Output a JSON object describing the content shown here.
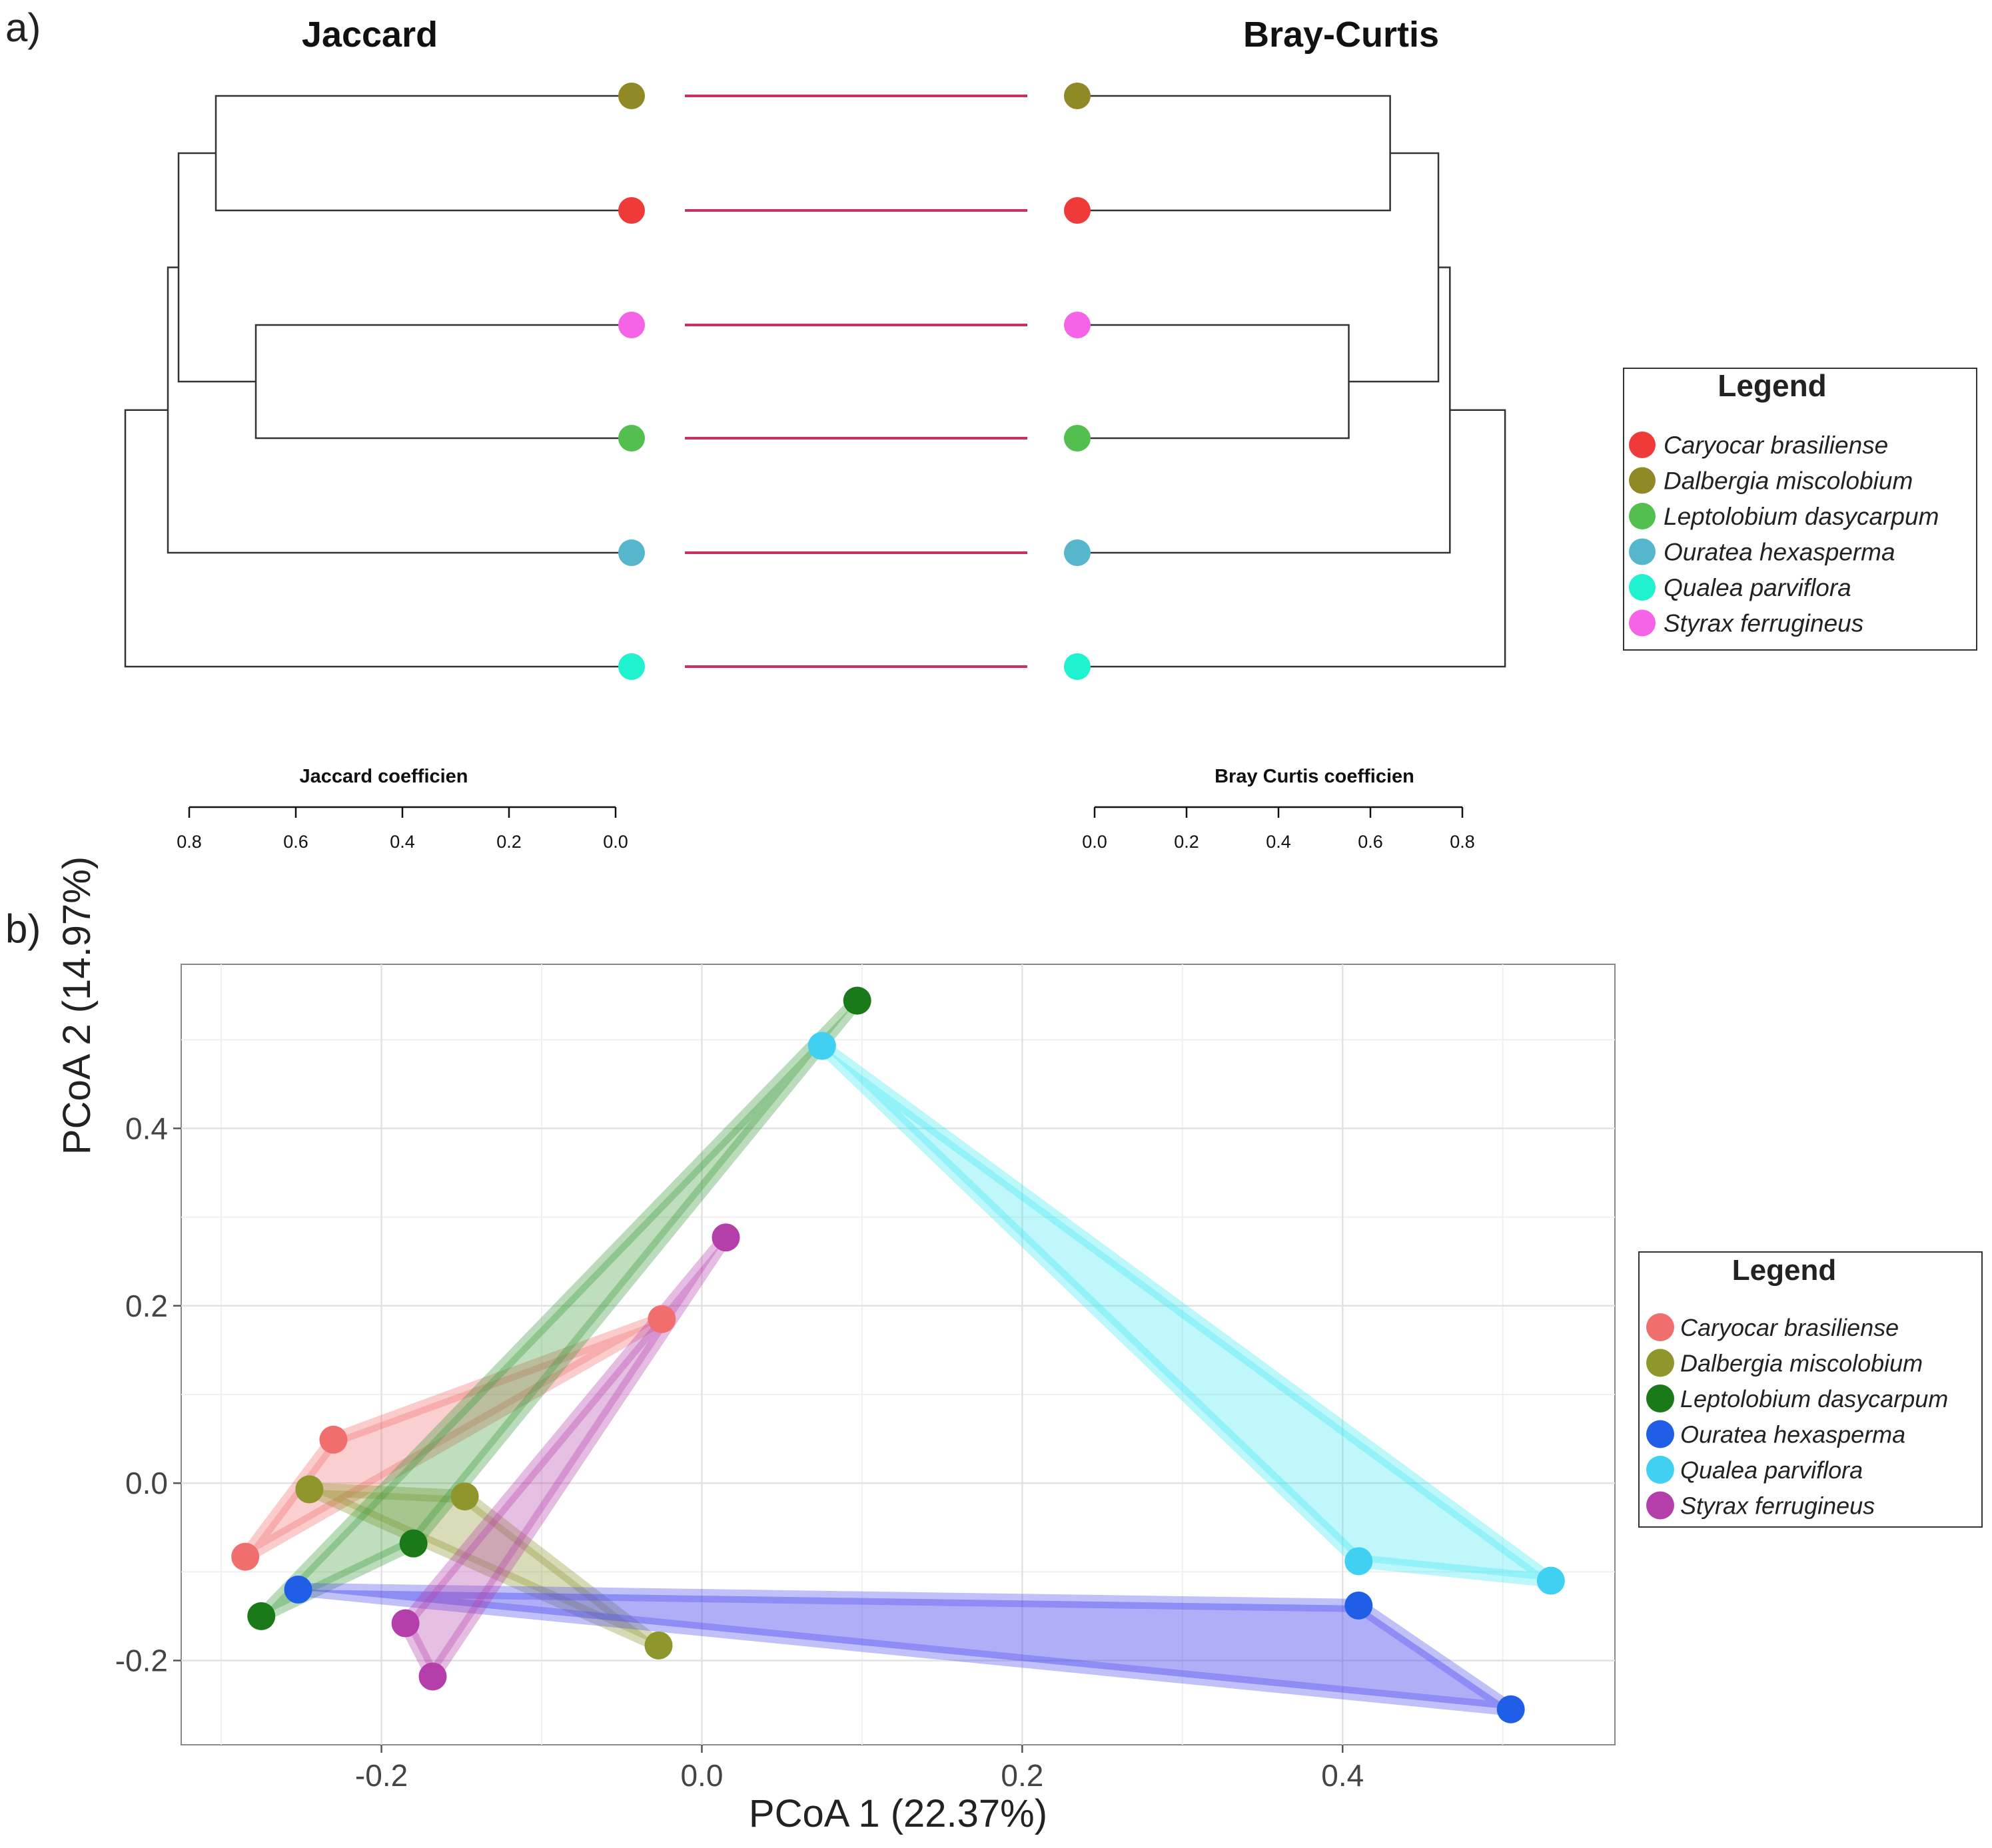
{
  "panel_labels": {
    "a": "a)",
    "b": "b)"
  },
  "species_colors_dendro": {
    "Caryocar brasiliense": "#f03a3a",
    "Dalbergia miscolobium": "#8f8a25",
    "Leptolobium dasycarpum": "#52bf4e",
    "Ouratea hexasperma": "#55b6cc",
    "Qualea parviflora": "#1ff2cf",
    "Styrax ferrugineus": "#f563e6"
  },
  "species_colors_pcoa": {
    "Caryocar brasiliense": "#f06e6e",
    "Dalbergia miscolobium": "#8f962b",
    "Leptolobium dasycarpum": "#1a7a1a",
    "Ouratea hexasperma": "#1f5fe8",
    "Qualea parviflora": "#3fd0f2",
    "Styrax ferrugineus": "#b43fab"
  },
  "chart_data": [
    {
      "type": "dendrogram",
      "panel": "a)",
      "title_left": "Jaccard",
      "title_right": "Bray-Curtis",
      "leaf_order": [
        "Dalbergia miscolobium",
        "Caryocar brasiliense",
        "Styrax ferrugineus",
        "Leptolobium dasycarpum",
        "Ouratea hexasperma",
        "Qualea parviflora"
      ],
      "connector_color": "#c8325f",
      "jaccard": {
        "axis_label": "Jaccard coefficien",
        "ticks": [
          0.8,
          0.6,
          0.4,
          0.2,
          0.0
        ],
        "tick_labels": [
          "0.8",
          "0.6",
          "0.4",
          "0.2",
          "0.0"
        ],
        "xlim": [
          0.0,
          0.8
        ],
        "merges": [
          {
            "members": [
              0,
              1
            ],
            "height": 0.75
          },
          {
            "members": [
              2,
              3
            ],
            "height": 0.675
          },
          {
            "members": [
              6,
              7
            ],
            "height": 0.82
          },
          {
            "members": [
              8,
              4
            ],
            "height": 0.84
          },
          {
            "members": [
              9,
              5
            ],
            "height": 0.92
          }
        ]
      },
      "bray_curtis": {
        "axis_label": "Bray Curtis coefficien",
        "ticks": [
          0.0,
          0.2,
          0.4,
          0.6,
          0.8
        ],
        "tick_labels": [
          "0.0",
          "0.2",
          "0.4",
          "0.6",
          "0.8"
        ],
        "xlim": [
          0.0,
          0.8
        ],
        "merges": [
          {
            "members": [
              0,
              1
            ],
            "height": 0.64
          },
          {
            "members": [
              2,
              3
            ],
            "height": 0.55
          },
          {
            "members": [
              6,
              7
            ],
            "height": 0.745
          },
          {
            "members": [
              8,
              4
            ],
            "height": 0.77
          },
          {
            "members": [
              9,
              5
            ],
            "height": 0.89
          }
        ]
      },
      "legend": {
        "title": "Legend",
        "entries": [
          "Caryocar brasiliense",
          "Dalbergia miscolobium",
          "Leptolobium dasycarpum",
          "Ouratea hexasperma",
          "Qualea parviflora",
          "Styrax ferrugineus"
        ]
      }
    },
    {
      "type": "scatter",
      "panel": "b)",
      "xlabel": "PCoA 1 (22.37%)",
      "ylabel": "PCoA 2 (14.97%)",
      "xlim": [
        -0.325,
        0.57
      ],
      "ylim": [
        -0.295,
        0.585
      ],
      "xticks": [
        -0.2,
        0.0,
        0.2,
        0.4
      ],
      "xtick_labels": [
        "-0.2",
        "0.0",
        "0.2",
        "0.4"
      ],
      "yticks": [
        -0.2,
        0.0,
        0.2,
        0.4
      ],
      "ytick_labels": [
        "-0.2",
        "0.0",
        "0.2",
        "0.4"
      ],
      "grid": true,
      "hull_opacity": 0.33,
      "series": [
        {
          "name": "Caryocar brasiliense",
          "points": [
            [
              -0.285,
              -0.083
            ],
            [
              -0.23,
              0.049
            ],
            [
              -0.025,
              0.185
            ]
          ]
        },
        {
          "name": "Dalbergia miscolobium",
          "points": [
            [
              -0.245,
              -0.007
            ],
            [
              -0.148,
              -0.015
            ],
            [
              -0.027,
              -0.183
            ]
          ]
        },
        {
          "name": "Leptolobium dasycarpum",
          "points": [
            [
              -0.275,
              -0.15
            ],
            [
              -0.18,
              -0.068
            ],
            [
              0.097,
              0.544
            ]
          ]
        },
        {
          "name": "Ouratea hexasperma",
          "points": [
            [
              -0.252,
              -0.12
            ],
            [
              0.41,
              -0.138
            ],
            [
              0.505,
              -0.255
            ]
          ]
        },
        {
          "name": "Qualea parviflora",
          "points": [
            [
              0.075,
              0.493
            ],
            [
              0.41,
              -0.088
            ],
            [
              0.53,
              -0.11
            ]
          ]
        },
        {
          "name": "Styrax ferrugineus",
          "points": [
            [
              -0.185,
              -0.158
            ],
            [
              -0.168,
              -0.218
            ],
            [
              0.015,
              0.277
            ]
          ]
        }
      ],
      "legend": {
        "title": "Legend",
        "entries": [
          "Caryocar brasiliense",
          "Dalbergia miscolobium",
          "Leptolobium dasycarpum",
          "Ouratea hexasperma",
          "Qualea parviflora",
          "Styrax ferrugineus"
        ]
      }
    }
  ]
}
